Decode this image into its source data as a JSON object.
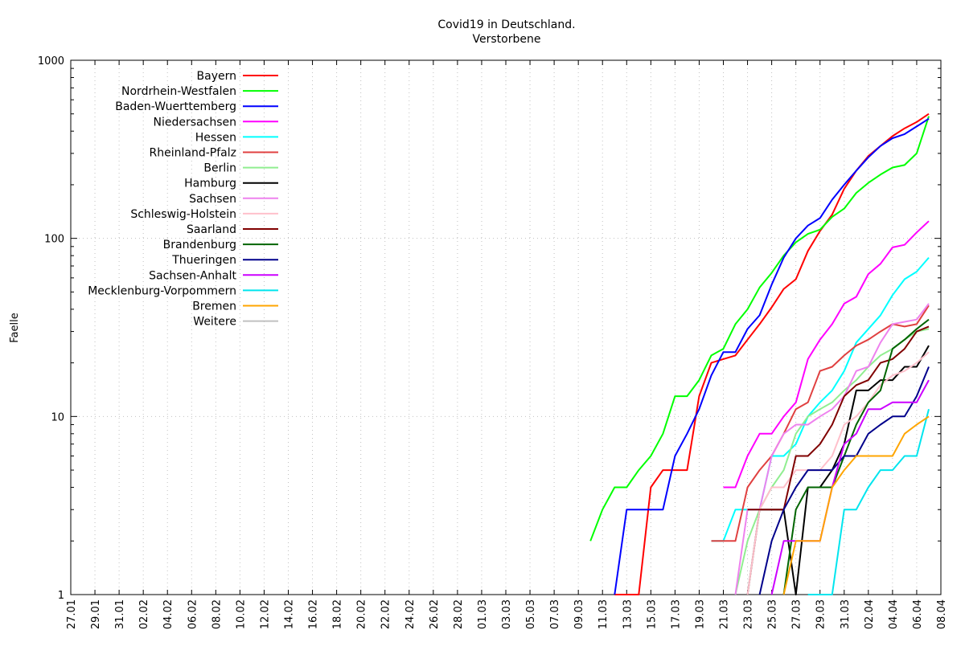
{
  "chart_data": {
    "type": "line",
    "title": "Covid19 in Deutschland.",
    "subtitle": "Verstorbene",
    "xlabel": "",
    "ylabel": "Faelle",
    "yscale": "log",
    "ylim": [
      1,
      1000
    ],
    "yticks": [
      "1",
      "10",
      "100",
      "1000"
    ],
    "x_ticks": [
      "27.01",
      "29.01",
      "31.01",
      "02.02",
      "04.02",
      "06.02",
      "08.02",
      "10.02",
      "12.02",
      "14.02",
      "16.02",
      "18.02",
      "20.02",
      "22.02",
      "24.02",
      "26.02",
      "28.02",
      "01.03",
      "03.03",
      "05.03",
      "07.03",
      "09.03",
      "11.03",
      "13.03",
      "15.03",
      "17.03",
      "19.03",
      "21.03",
      "23.03",
      "25.03",
      "27.03",
      "29.03",
      "31.03",
      "02.04",
      "04.04",
      "06.04",
      "08.04"
    ],
    "x_start": "27.01",
    "x_end": "08.04",
    "grid": true,
    "legend_position": "top-left",
    "series": [
      {
        "name": "Bayern",
        "color": "#ff0000",
        "x": [
          "12.03",
          "13.03",
          "14.03",
          "15.03",
          "16.03",
          "17.03",
          "18.03",
          "19.03",
          "20.03",
          "21.03",
          "22.03",
          "23.03",
          "24.03",
          "25.03",
          "26.03",
          "27.03",
          "28.03",
          "29.03",
          "30.03",
          "31.03",
          "01.04",
          "02.04",
          "03.04",
          "04.04",
          "05.04",
          "06.04",
          "07.04"
        ],
        "values": [
          1,
          1,
          1,
          4,
          5,
          5,
          5,
          13,
          20,
          21,
          22,
          27,
          33,
          41,
          52,
          59,
          85,
          110,
          136,
          190,
          240,
          290,
          330,
          375,
          415,
          450,
          500
        ]
      },
      {
        "name": "Nordrhein-Westfalen",
        "color": "#00ff00",
        "x": [
          "10.03",
          "11.03",
          "12.03",
          "13.03",
          "14.03",
          "15.03",
          "16.03",
          "17.03",
          "18.03",
          "19.03",
          "20.03",
          "21.03",
          "22.03",
          "23.03",
          "24.03",
          "25.03",
          "26.03",
          "27.03",
          "28.03",
          "29.03",
          "30.03",
          "31.03",
          "01.04",
          "02.04",
          "03.04",
          "04.04",
          "05.04",
          "06.04",
          "07.04"
        ],
        "values": [
          2,
          3,
          4,
          4,
          5,
          6,
          8,
          13,
          13,
          16,
          22,
          24,
          33,
          40,
          53,
          64,
          80,
          95,
          106,
          112,
          132,
          147,
          180,
          205,
          228,
          250,
          258,
          300,
          485
        ]
      },
      {
        "name": "Baden-Wuerttemberg",
        "color": "#0000ff",
        "x": [
          "12.03",
          "13.03",
          "14.03",
          "15.03",
          "16.03",
          "17.03",
          "18.03",
          "19.03",
          "20.03",
          "21.03",
          "22.03",
          "23.03",
          "24.03",
          "25.03",
          "26.03",
          "27.03",
          "28.03",
          "29.03",
          "30.03",
          "31.03",
          "01.04",
          "02.04",
          "03.04",
          "04.04",
          "05.04",
          "06.04",
          "07.04"
        ],
        "values": [
          1,
          3,
          3,
          3,
          3,
          6,
          8,
          11,
          17,
          23,
          23,
          31,
          37,
          55,
          78,
          100,
          118,
          130,
          165,
          200,
          240,
          285,
          330,
          365,
          385,
          425,
          470
        ]
      },
      {
        "name": "Niedersachsen",
        "color": "#ff00ff",
        "x": [
          "21.03",
          "22.03",
          "23.03",
          "24.03",
          "25.03",
          "26.03",
          "27.03",
          "28.03",
          "29.03",
          "30.03",
          "31.03",
          "01.04",
          "02.04",
          "03.04",
          "04.04",
          "05.04",
          "06.04",
          "07.04"
        ],
        "values": [
          4,
          4,
          6,
          8,
          8,
          10,
          12,
          21,
          27,
          33,
          43,
          47,
          63,
          72,
          89,
          92,
          108,
          125
        ]
      },
      {
        "name": "Hessen",
        "color": "#00ffff",
        "x": [
          "20.03",
          "21.03",
          "22.03",
          "23.03",
          "24.03",
          "25.03",
          "26.03",
          "27.03",
          "28.03",
          "29.03",
          "30.03",
          "31.03",
          "01.04",
          "02.04",
          "03.04",
          "04.04",
          "05.04",
          "06.04",
          "07.04"
        ],
        "values": [
          2,
          2,
          3,
          3,
          3,
          6,
          6,
          7,
          10,
          12,
          14,
          18,
          26,
          31,
          37,
          48,
          59,
          65,
          78
        ]
      },
      {
        "name": "Rheinland-Pfalz",
        "color": "#e04040",
        "x": [
          "20.03",
          "21.03",
          "22.03",
          "23.03",
          "24.03",
          "25.03",
          "26.03",
          "27.03",
          "28.03",
          "29.03",
          "30.03",
          "31.03",
          "01.04",
          "02.04",
          "03.04",
          "04.04",
          "05.04",
          "06.04",
          "07.04"
        ],
        "values": [
          2,
          2,
          2,
          4,
          5,
          6,
          8,
          11,
          12,
          18,
          19,
          22,
          25,
          27,
          30,
          33,
          32,
          33,
          42
        ]
      },
      {
        "name": "Berlin",
        "color": "#90ee90",
        "x": [
          "22.03",
          "23.03",
          "24.03",
          "25.03",
          "26.03",
          "27.03",
          "28.03",
          "29.03",
          "30.03",
          "31.03",
          "01.04",
          "02.04",
          "03.04",
          "04.04",
          "05.04",
          "06.04",
          "07.04"
        ],
        "values": [
          1,
          2,
          3,
          4,
          5,
          8,
          10,
          11,
          12,
          14,
          16,
          19,
          22,
          24,
          27,
          30,
          31
        ]
      },
      {
        "name": "Hamburg",
        "color": "#000000",
        "x": [
          "23.03",
          "24.03",
          "25.03",
          "26.03",
          "27.03",
          "28.03",
          "29.03",
          "30.03",
          "31.03",
          "01.04",
          "02.04",
          "03.04",
          "04.04",
          "05.04",
          "06.04",
          "07.04"
        ],
        "values": [
          1,
          3,
          3,
          3,
          1,
          4,
          4,
          5,
          7,
          14,
          14,
          16,
          16,
          19,
          19,
          25
        ]
      },
      {
        "name": "Sachsen",
        "color": "#ee82ee",
        "x": [
          "22.03",
          "23.03",
          "24.03",
          "25.03",
          "26.03",
          "27.03",
          "28.03",
          "29.03",
          "30.03",
          "31.03",
          "01.04",
          "02.04",
          "03.04",
          "04.04",
          "05.04",
          "06.04",
          "07.04"
        ],
        "values": [
          1,
          3,
          3,
          6,
          8,
          9,
          9,
          10,
          11,
          13,
          18,
          19,
          26,
          33,
          34,
          35,
          43
        ]
      },
      {
        "name": "Schleswig-Holstein",
        "color": "#ffc0cb",
        "x": [
          "23.03",
          "24.03",
          "25.03",
          "26.03",
          "27.03",
          "28.03",
          "29.03",
          "30.03",
          "31.03",
          "01.04",
          "02.04",
          "03.04",
          "04.04",
          "05.04",
          "06.04",
          "07.04"
        ],
        "values": [
          1,
          3,
          4,
          4,
          5,
          5,
          5,
          6,
          9,
          10,
          12,
          15,
          17,
          18,
          20,
          23
        ]
      },
      {
        "name": "Saarland",
        "color": "#800000",
        "x": [
          "23.03",
          "24.03",
          "25.03",
          "26.03",
          "27.03",
          "28.03",
          "29.03",
          "30.03",
          "31.03",
          "01.04",
          "02.04",
          "03.04",
          "04.04",
          "05.04",
          "06.04",
          "07.04"
        ],
        "values": [
          3,
          3,
          3,
          3,
          6,
          6,
          7,
          9,
          13,
          15,
          16,
          20,
          21,
          24,
          30,
          32
        ]
      },
      {
        "name": "Brandenburg",
        "color": "#006400",
        "x": [
          "26.03",
          "27.03",
          "28.03",
          "29.03",
          "30.03",
          "31.03",
          "01.04",
          "02.04",
          "03.04",
          "04.04",
          "05.04",
          "06.04",
          "07.04"
        ],
        "values": [
          1,
          3,
          4,
          4,
          4,
          6,
          9,
          12,
          14,
          24,
          27,
          31,
          35
        ]
      },
      {
        "name": "Thueringen",
        "color": "#00008b",
        "x": [
          "24.03",
          "25.03",
          "26.03",
          "27.03",
          "28.03",
          "29.03",
          "30.03",
          "31.03",
          "01.04",
          "02.04",
          "03.04",
          "04.04",
          "05.04",
          "06.04",
          "07.04"
        ],
        "values": [
          1,
          2,
          3,
          4,
          5,
          5,
          5,
          6,
          6,
          8,
          9,
          10,
          10,
          13,
          19
        ]
      },
      {
        "name": "Sachsen-Anhalt",
        "color": "#cc00ff",
        "x": [
          "25.03",
          "26.03",
          "27.03",
          "28.03",
          "29.03",
          "30.03",
          "31.03",
          "01.04",
          "02.04",
          "03.04",
          "04.04",
          "05.04",
          "06.04",
          "07.04"
        ],
        "values": [
          1,
          2,
          2,
          2,
          2,
          4,
          7,
          8,
          11,
          11,
          12,
          12,
          12,
          16
        ]
      },
      {
        "name": "Mecklenburg-Vorpommern",
        "color": "#00e5ee",
        "x": [
          "28.03",
          "29.03",
          "30.03",
          "31.03",
          "01.04",
          "02.04",
          "03.04",
          "04.04",
          "05.04",
          "06.04",
          "07.04"
        ],
        "values": [
          1,
          1,
          1,
          3,
          3,
          4,
          5,
          5,
          6,
          6,
          11
        ]
      },
      {
        "name": "Bremen",
        "color": "#ffa500",
        "x": [
          "26.03",
          "27.03",
          "28.03",
          "29.03",
          "30.03",
          "31.03",
          "01.04",
          "02.04",
          "03.04",
          "04.04",
          "05.04",
          "06.04",
          "07.04"
        ],
        "values": [
          1,
          2,
          2,
          2,
          4,
          5,
          6,
          6,
          6,
          6,
          8,
          9,
          10
        ]
      },
      {
        "name": "Weitere",
        "color": "#c0c0c0",
        "x": [],
        "values": []
      }
    ]
  }
}
